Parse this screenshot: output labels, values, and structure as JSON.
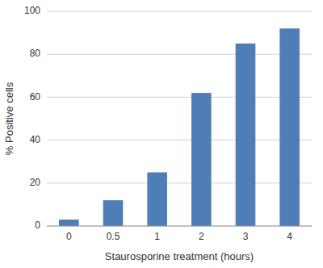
{
  "chart_data": {
    "type": "bar",
    "categories": [
      "0",
      "0.5",
      "1",
      "2",
      "3",
      "4"
    ],
    "values": [
      3,
      12,
      25,
      62,
      85,
      92
    ],
    "color": "#4e7eb5",
    "xlabel": "Staurosporine treatment (hours)",
    "ylabel": "% Positive cells",
    "ylim": [
      0,
      100
    ],
    "yticks": [
      0,
      20,
      40,
      60,
      80,
      100
    ],
    "grid": true
  }
}
